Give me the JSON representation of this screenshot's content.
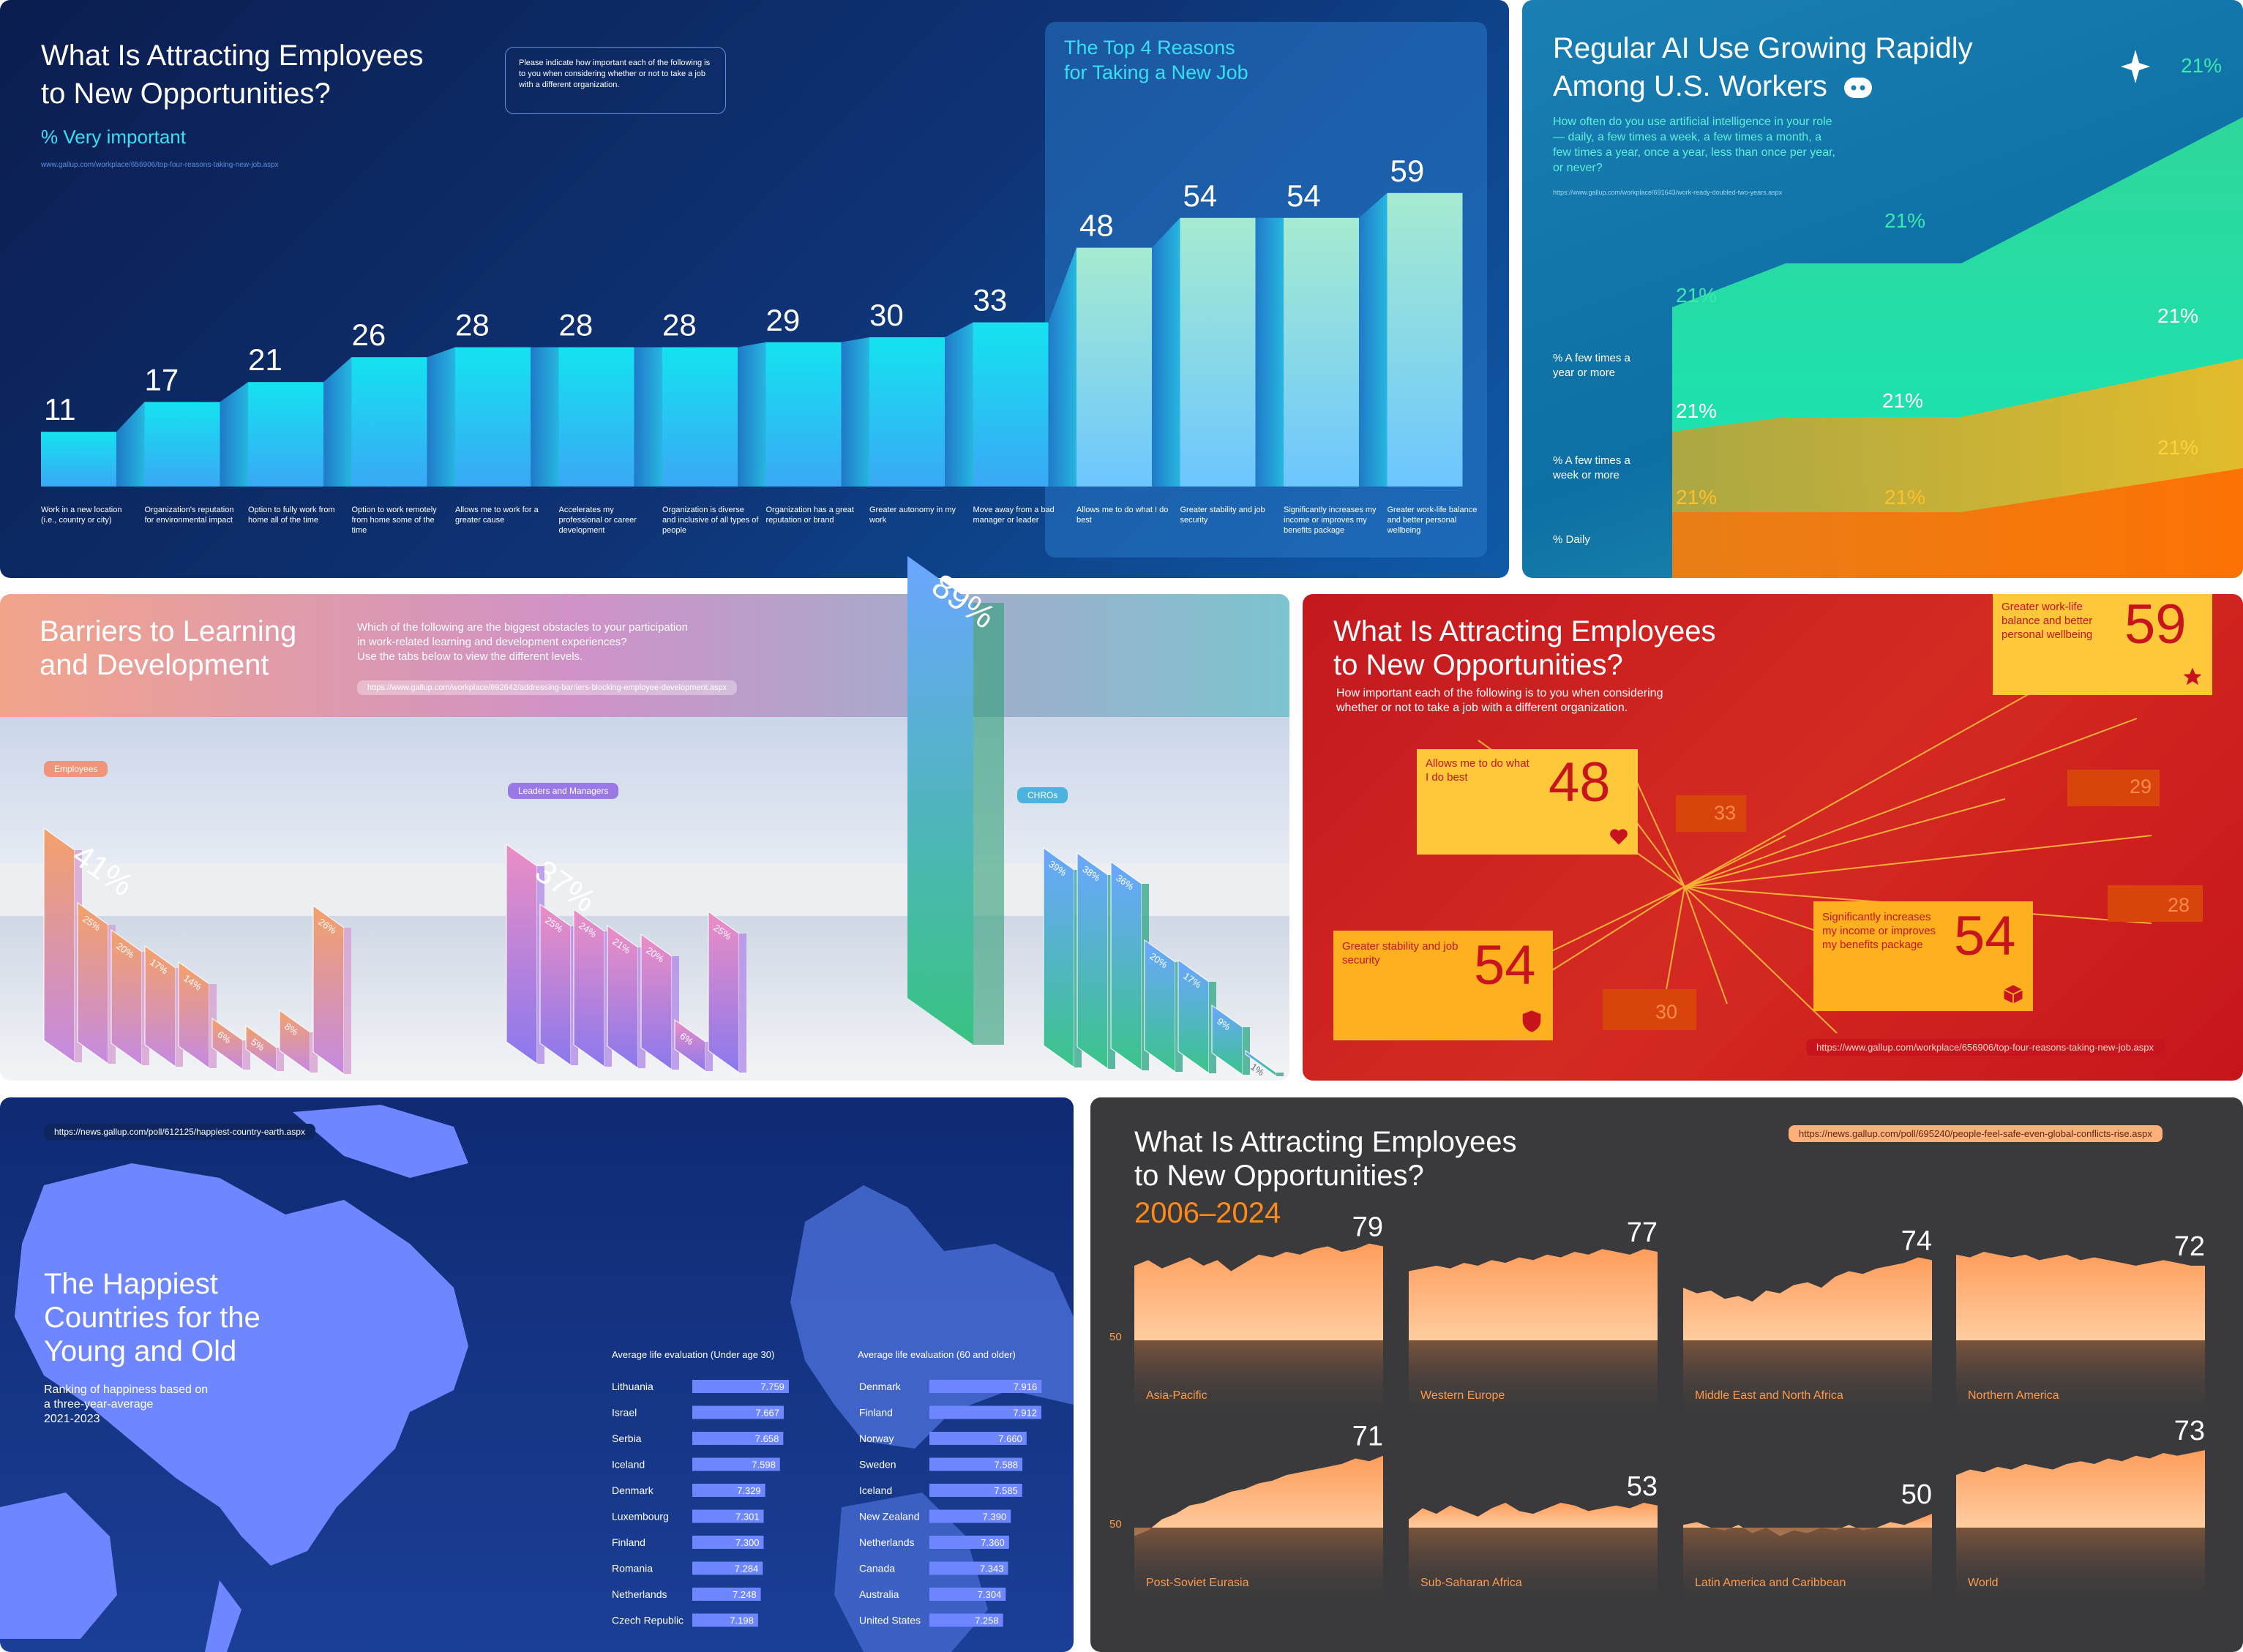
{
  "p1": {
    "title_line1": "What Is Attracting Employees",
    "title_line2": "to New Opportunities?",
    "subtitle": "% Very important",
    "url": "www.gallup.com/workplace/656906/top-four-reasons-taking-new-job.aspx",
    "question": "Please indicate how important each of the following is to you when considering whether or not to take a job with a different organization.",
    "top4_line1": "The Top 4 Reasons",
    "top4_line2": "for Taking a New Job"
  },
  "p2": {
    "title_line1": "Regular AI Use Growing Rapidly",
    "title_line2": "Among U.S. Workers",
    "question": "How often do you use artificial intelligence in your role — daily, a few times a week, a few times a month, a few times a year, once a year, less than once per year, or never?",
    "url": "https://www.gallup.com/workplace/691643/work-ready-doubled-two-years.aspx",
    "top_value": "21%",
    "row1": "% A few times a year or more",
    "row2": "% A few times a week or more",
    "row3": "% Daily"
  },
  "p3": {
    "title_line1": "Barriers to Learning",
    "title_line2": "and Development",
    "question_line1": "Which of the following are the biggest obstacles to your participation",
    "question_line2": "in work-related learning and development experiences?",
    "question_line3": "Use the tabs below to view the different levels.",
    "url": "https://www.gallup.com/workplace/692642/addressing-barriers-blocking-employee-development.aspx",
    "tab1": "Employees",
    "tab2": "Leaders and Managers",
    "tab3": "CHROs"
  },
  "p4": {
    "title_line1": "What Is Attracting Employees",
    "title_line2": "to New Opportunities?",
    "question_line1": "How important each of the following is to you when considering",
    "question_line2": "whether or not to take a job with a different organization.",
    "url": "https://www.gallup.com/workplace/656906/top-four-reasons-taking-new-job.aspx",
    "card1_label": "Greater work-life balance and better personal wellbeing",
    "card1_value": "59",
    "card2_label": "Allows me to do what I do best",
    "card2_value": "48",
    "card3_label": "Greater stability and job security",
    "card3_value": "54",
    "card4_label": "Significantly increases my income or improves my benefits package",
    "card4_value": "54",
    "minor": [
      "33",
      "29",
      "28",
      "30"
    ],
    "colors": {
      "card": "#ffc83a",
      "value": "#c8141c",
      "minor": "#d8440c"
    }
  },
  "p5": {
    "url": "https://news.gallup.com/poll/612125/happiest-country-earth.aspx",
    "title_line1": "The Happiest",
    "title_line2": "Countries for the",
    "title_line3": "Young and Old",
    "desc_line1": "Ranking of happiness based on",
    "desc_line2": "a three-year-average",
    "desc_line3": "2021-2023"
  },
  "p6": {
    "title_line1": "What Is Attracting Employees",
    "title_line2": "to New Opportunities?",
    "years": "2006–2024",
    "url": "https://news.gallup.com/poll/695240/people-feel-safe-even-global-conflicts-rise.aspx",
    "ref_label": "50"
  },
  "chart_data": [
    {
      "type": "bar",
      "title": "What Is Attracting Employees to New Opportunities?",
      "subtitle": "% Very important",
      "categories": [
        "Work in a new location (i.e., country or city)",
        "Organization's reputation for environmental impact",
        "Option to fully work from home all of the time",
        "Option to work remotely from home some of the time",
        "Allows me to work for a greater cause",
        "Accelerates my professional or career development",
        "Organization is diverse and inclusive of all types of people",
        "Organization has a great reputation or brand",
        "Greater autonomy in my work",
        "Move away from a bad manager or leader",
        "Allows me to do what I do best",
        "Greater stability and job security",
        "Significantly increases my income or improves my benefits package",
        "Greater work-life balance and better personal wellbeing"
      ],
      "values": [
        11,
        17,
        21,
        26,
        28,
        28,
        28,
        29,
        30,
        33,
        48,
        54,
        54,
        59
      ],
      "highlight": "The Top 4 Reasons for Taking a New Job"
    },
    {
      "type": "area",
      "title": "Regular AI Use Growing Rapidly Among U.S. Workers",
      "series": [
        {
          "name": "% A few times a year or more",
          "labels": [
            "21%",
            "21%",
            "21%"
          ]
        },
        {
          "name": "% A few times a week or more",
          "labels": [
            "21%",
            "21%",
            "21%"
          ]
        },
        {
          "name": "% Daily",
          "labels": [
            "21%",
            "21%",
            "21%"
          ]
        }
      ]
    },
    {
      "type": "bar",
      "title": "Barriers to Learning and Development",
      "groups": [
        {
          "name": "Employees",
          "labels": [
            "41%",
            "25%",
            "20%",
            "17%",
            "14%",
            "6%",
            "5%",
            "8%",
            "26%"
          ]
        },
        {
          "name": "Leaders and Managers",
          "labels": [
            "37%",
            "25%",
            "24%",
            "21%",
            "20%",
            "6%",
            "25%"
          ]
        },
        {
          "name": "CHROs",
          "labels": [
            "89%",
            "39%",
            "38%",
            "36%",
            "20%",
            "17%",
            "9%",
            "1%"
          ]
        }
      ]
    },
    {
      "type": "bar",
      "title": "The Happiest Countries for the Young and Old",
      "series": [
        {
          "name": "Average life evaluation (Under age 30)",
          "categories": [
            "Lithuania",
            "Israel",
            "Serbia",
            "Iceland",
            "Denmark",
            "Luxembourg",
            "Finland",
            "Romania",
            "Netherlands",
            "Czech Republic"
          ],
          "values": [
            7.759,
            7.667,
            7.658,
            7.598,
            7.329,
            7.301,
            7.3,
            7.284,
            7.248,
            7.198
          ],
          "labels": [
            "7.759",
            "7.667",
            "7.658",
            "7.598",
            "7.329",
            "7.301",
            "7.300",
            "7.284",
            "7.248",
            "7.198"
          ]
        },
        {
          "name": "Average life evaluation (60 and older)",
          "categories": [
            "Denmark",
            "Finland",
            "Norway",
            "Sweden",
            "Iceland",
            "New Zealand",
            "Netherlands",
            "Canada",
            "Australia",
            "United States"
          ],
          "values": [
            7.916,
            7.912,
            7.66,
            7.588,
            7.585,
            7.39,
            7.36,
            7.343,
            7.304,
            7.258
          ],
          "labels": [
            "7.916",
            "7.912",
            "7.660",
            "7.588",
            "7.585",
            "7.390",
            "7.360",
            "7.343",
            "7.304",
            "7.258"
          ]
        }
      ]
    },
    {
      "type": "area",
      "title": "What Is Attracting Employees to New Opportunities?",
      "subtitle": "2006–2024",
      "reference": "50",
      "series": [
        {
          "name": "Asia-Pacific",
          "last_label": "79",
          "values": [
            72,
            74,
            71,
            73,
            75,
            72,
            74,
            70,
            73,
            76,
            75,
            77,
            76,
            78,
            79,
            77,
            78,
            80,
            79
          ]
        },
        {
          "name": "Western Europe",
          "last_label": "77",
          "values": [
            70,
            71,
            72,
            71,
            73,
            72,
            74,
            73,
            75,
            74,
            76,
            75,
            77,
            76,
            78,
            77,
            76,
            78,
            77
          ]
        },
        {
          "name": "Middle East and North Africa",
          "last_label": "74",
          "values": [
            64,
            62,
            63,
            60,
            61,
            59,
            63,
            62,
            65,
            66,
            64,
            68,
            70,
            69,
            71,
            72,
            73,
            75,
            74
          ]
        },
        {
          "name": "Northern America",
          "last_label": "72",
          "values": [
            76,
            75,
            77,
            76,
            75,
            76,
            74,
            75,
            76,
            74,
            75,
            74,
            73,
            72,
            73,
            74,
            73,
            72,
            72
          ]
        },
        {
          "name": "Post-Soviet Eurasia",
          "last_label": "71",
          "values": [
            42,
            44,
            48,
            50,
            53,
            54,
            56,
            58,
            59,
            61,
            62,
            64,
            65,
            66,
            67,
            68,
            70,
            69,
            71
          ]
        },
        {
          "name": "Sub-Saharan Africa",
          "last_label": "53",
          "values": [
            48,
            52,
            50,
            53,
            51,
            49,
            52,
            54,
            51,
            50,
            52,
            54,
            53,
            51,
            52,
            53,
            52,
            54,
            53
          ]
        },
        {
          "name": "Latin America and Caribbean",
          "last_label": "50",
          "values": [
            46,
            47,
            45,
            44,
            46,
            43,
            45,
            42,
            44,
            43,
            45,
            44,
            46,
            44,
            45,
            47,
            46,
            48,
            50
          ]
        },
        {
          "name": "World",
          "last_label": "73",
          "values": [
            64,
            66,
            65,
            67,
            66,
            68,
            67,
            66,
            68,
            69,
            68,
            70,
            69,
            71,
            70,
            72,
            71,
            72,
            73
          ]
        }
      ]
    }
  ]
}
